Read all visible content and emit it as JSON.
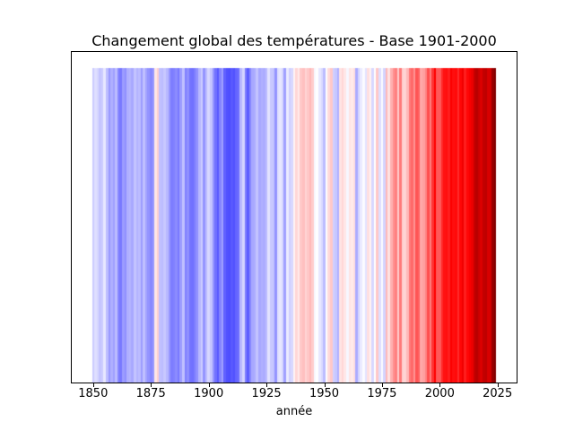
{
  "figure": {
    "background": "#ffffff",
    "text_color": "#000000"
  },
  "chart_data": {
    "type": "bar",
    "variant": "warming-stripes",
    "title": "Changement global des températures - Base 1901-2000",
    "xlabel": "année",
    "x_tick_labels": [
      "1850",
      "1875",
      "1900",
      "1925",
      "1950",
      "1975",
      "2000",
      "2025"
    ],
    "xlim": [
      1840.75,
      2033.25
    ],
    "ylim": [
      0,
      1.05
    ],
    "bar_height": 1,
    "grid": false,
    "legend": "none",
    "colormap": "seismic",
    "color_limits": [
      -1.29,
      1.29
    ],
    "colormap_end_colors": {
      "coldest": "#00004c",
      "cold": "#0000ff",
      "neutral": "#ffffff",
      "warm": "#ff0000",
      "warmest": "#800000"
    },
    "start_year": 1850,
    "end_year": 2024,
    "anomalies": [
      -0.13,
      -0.08,
      -0.1,
      -0.15,
      -0.13,
      -0.06,
      -0.17,
      -0.26,
      -0.2,
      -0.24,
      -0.17,
      -0.3,
      -0.34,
      -0.25,
      -0.28,
      -0.2,
      -0.19,
      -0.22,
      -0.15,
      -0.19,
      -0.17,
      -0.25,
      -0.16,
      -0.23,
      -0.27,
      -0.3,
      -0.26,
      0.06,
      0.12,
      -0.16,
      -0.17,
      -0.14,
      -0.18,
      -0.26,
      -0.33,
      -0.32,
      -0.29,
      -0.34,
      -0.25,
      -0.16,
      -0.32,
      -0.28,
      -0.35,
      -0.36,
      -0.33,
      -0.28,
      -0.18,
      -0.13,
      -0.27,
      -0.17,
      -0.1,
      -0.15,
      -0.27,
      -0.36,
      -0.42,
      -0.31,
      -0.24,
      -0.4,
      -0.44,
      -0.45,
      -0.42,
      -0.44,
      -0.39,
      -0.37,
      -0.18,
      -0.11,
      -0.33,
      -0.41,
      -0.3,
      -0.22,
      -0.21,
      -0.15,
      -0.22,
      -0.2,
      -0.21,
      -0.17,
      -0.07,
      -0.14,
      -0.15,
      -0.27,
      -0.08,
      -0.06,
      -0.1,
      -0.24,
      -0.05,
      -0.12,
      -0.1,
      0.03,
      0.1,
      0.05,
      0.14,
      0.16,
      0.11,
      0.14,
      0.18,
      0.13,
      -0.02,
      0.0,
      -0.06,
      -0.09,
      -0.17,
      0.0,
      0.09,
      0.14,
      -0.12,
      -0.14,
      -0.2,
      0.07,
      0.1,
      0.06,
      -0.02,
      0.07,
      0.05,
      0.08,
      -0.21,
      -0.11,
      -0.05,
      -0.01,
      -0.07,
      0.08,
      0.03,
      -0.1,
      0.0,
      0.14,
      -0.08,
      -0.01,
      -0.11,
      0.18,
      0.07,
      0.2,
      0.28,
      0.32,
      0.13,
      0.34,
      0.12,
      0.11,
      0.18,
      0.34,
      0.38,
      0.27,
      0.43,
      0.4,
      0.22,
      0.24,
      0.31,
      0.45,
      0.33,
      0.51,
      0.65,
      0.42,
      0.42,
      0.54,
      0.6,
      0.61,
      0.57,
      0.66,
      0.61,
      0.62,
      0.54,
      0.63,
      0.72,
      0.57,
      0.63,
      0.67,
      0.74,
      0.93,
      1.0,
      0.91,
      0.82,
      0.95,
      0.98,
      0.84,
      0.86,
      1.17,
      1.29
    ]
  }
}
